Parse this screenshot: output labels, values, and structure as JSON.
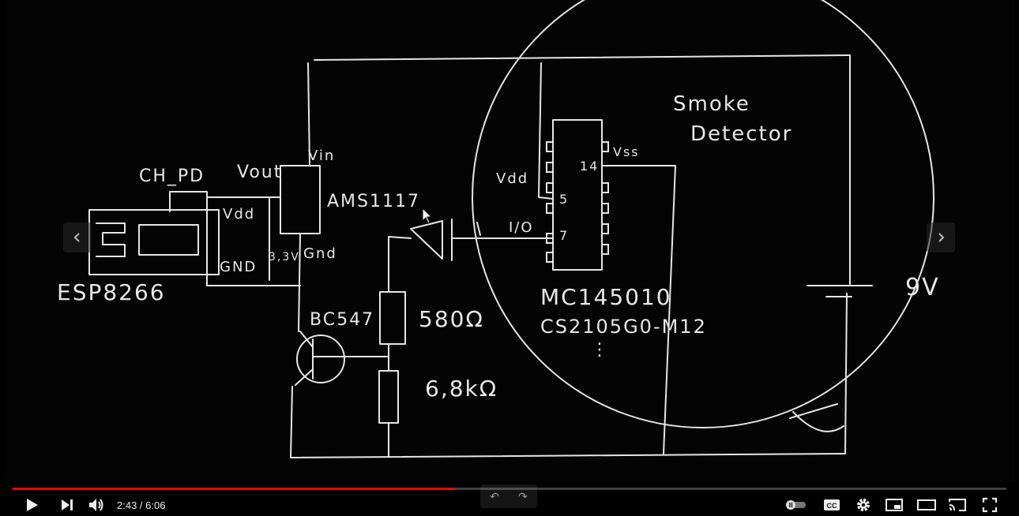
{
  "player": {
    "time_current": "2:43",
    "time_separator": " / ",
    "time_total": "6:06",
    "progress": 0.445,
    "accent_color": "#ff0000"
  },
  "sketch_labels": {
    "chpd": "CH_PD",
    "vout": "Vout",
    "vin": "Vin",
    "ams": "AMS1117",
    "vdd_esp": "Vdd",
    "gnd_esp": "GND",
    "v33": "3,3V",
    "gnd_reg": "Gnd",
    "esp": "ESP8266",
    "bc547": "BC547",
    "r1": "580Ω",
    "r2": "6,8kΩ",
    "vdd_ic": "Vdd",
    "io": "I/O",
    "pin5": "5",
    "pin7": "7",
    "pin14": "14",
    "vss": "Vss",
    "mc": "MC145010",
    "cs": "CS2105G0-M12",
    "dots": "⋮",
    "smoke": "Smoke",
    "detector": "Detector",
    "battery": "9V"
  },
  "icons": {
    "prev": "chevron-left-icon",
    "next": "chevron-right-icon",
    "play": "play-icon",
    "skip": "next-track-icon",
    "volume": "volume-icon",
    "autoplay": "autoplay-toggle-icon",
    "cc": "captions-icon",
    "settings": "gear-icon",
    "miniplayer": "miniplayer-icon",
    "theater": "theater-mode-icon",
    "cast": "cast-icon",
    "fullscreen": "fullscreen-icon"
  },
  "captions_label": "CC",
  "seek_hint": {
    "back": "↶",
    "forward": "↷"
  }
}
